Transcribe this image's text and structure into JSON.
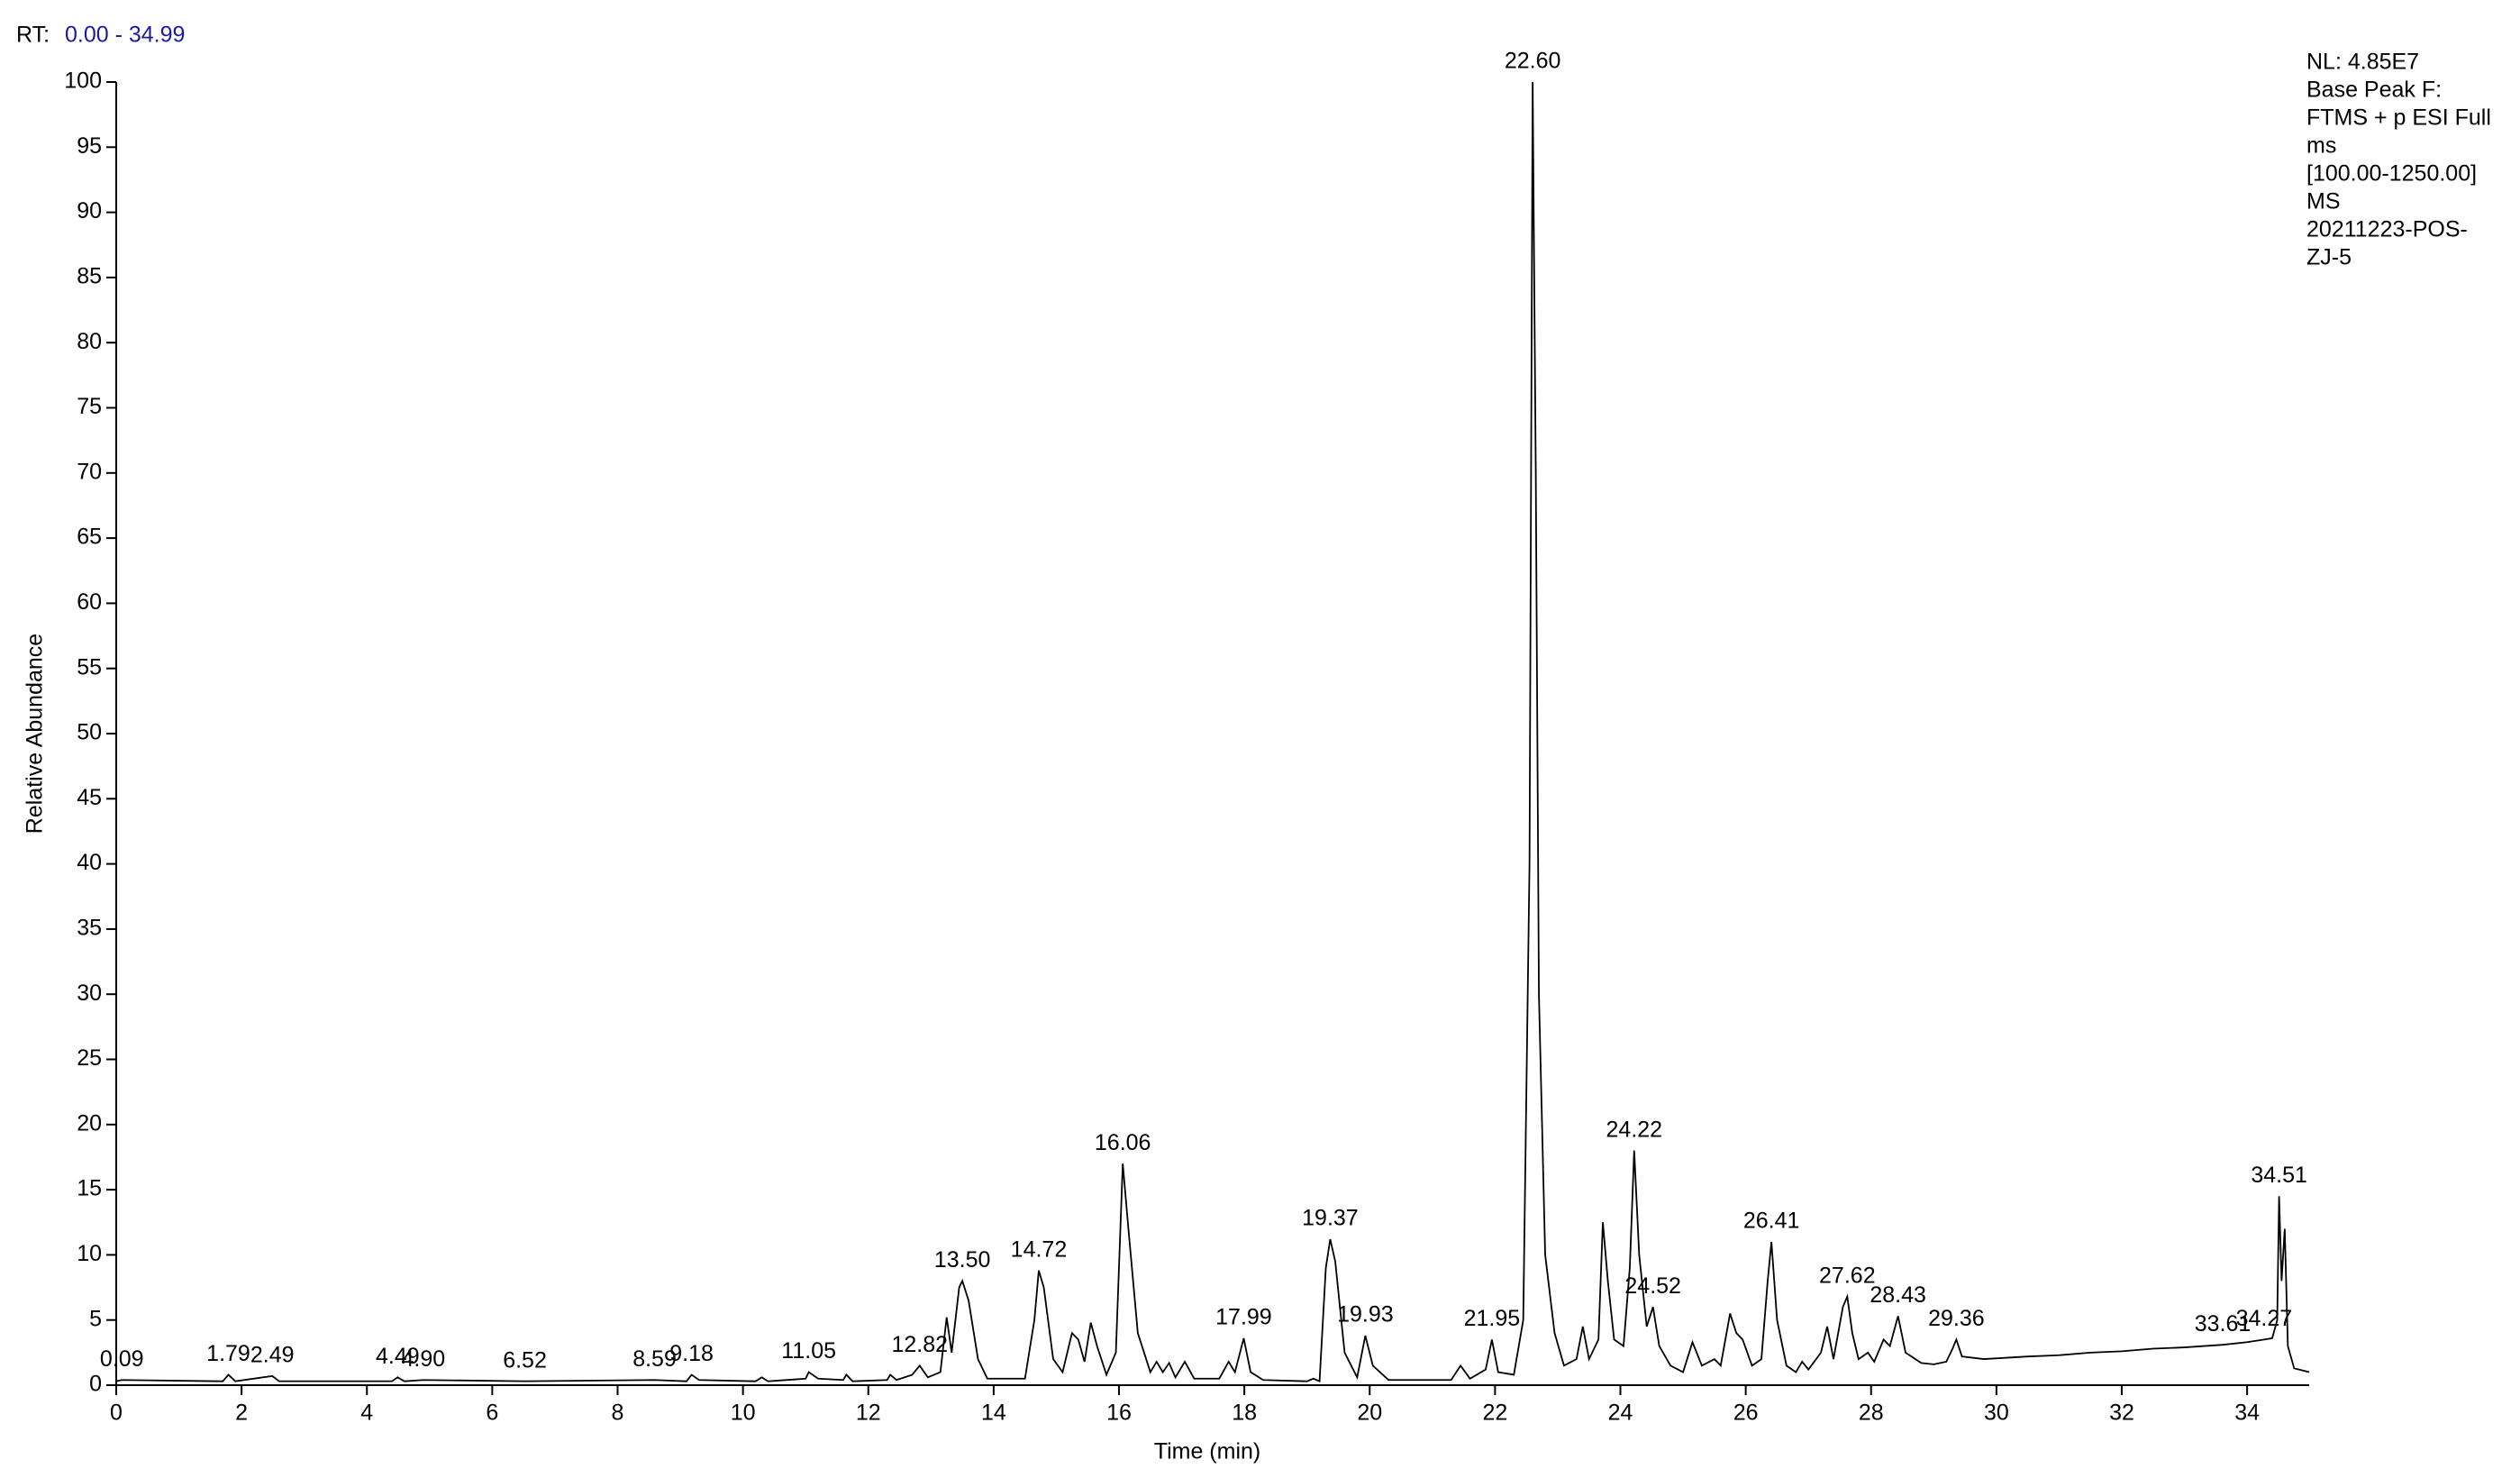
{
  "chart_data": {
    "type": "line",
    "range_label": "RT:",
    "range": "0.00 - 34.99",
    "info_lines": [
      "NL: 4.85E7",
      "Base Peak F:",
      "FTMS + p ESI Full",
      "ms",
      "[100.00-1250.00]",
      "MS",
      "20211223-POS-",
      "ZJ-5"
    ],
    "x_label": "Time (min)",
    "y_label": "Relative Abundance",
    "color": "#000000",
    "xlim": [
      0,
      34.99
    ],
    "ylim": [
      0,
      100
    ],
    "xticks": [
      0,
      2,
      4,
      6,
      8,
      10,
      12,
      14,
      16,
      18,
      20,
      22,
      24,
      26,
      28,
      30,
      32,
      34
    ],
    "yticks": [
      0,
      5,
      10,
      15,
      20,
      25,
      30,
      35,
      40,
      45,
      50,
      55,
      60,
      65,
      70,
      75,
      80,
      85,
      90,
      95,
      100
    ],
    "x": [
      0,
      0.09,
      1.7,
      1.79,
      1.9,
      2.49,
      2.6,
      4.4,
      4.49,
      4.6,
      4.9,
      6.52,
      8.59,
      9.1,
      9.18,
      9.3,
      10.2,
      10.3,
      10.4,
      11.0,
      11.05,
      11.2,
      11.6,
      11.65,
      11.75,
      12.3,
      12.35,
      12.45,
      12.7,
      12.82,
      12.95,
      13.15,
      13.25,
      13.33,
      13.45,
      13.5,
      13.6,
      13.75,
      13.9,
      14.5,
      14.65,
      14.72,
      14.8,
      14.95,
      15.1,
      15.25,
      15.35,
      15.45,
      15.55,
      15.65,
      15.8,
      15.95,
      16.06,
      16.15,
      16.3,
      16.5,
      16.6,
      16.7,
      16.8,
      16.9,
      17.05,
      17.2,
      17.6,
      17.75,
      17.85,
      17.99,
      18.1,
      18.3,
      19.0,
      19.1,
      19.2,
      19.3,
      19.37,
      19.45,
      19.6,
      19.8,
      19.93,
      20.05,
      20.3,
      21.3,
      21.45,
      21.6,
      21.85,
      21.95,
      22.05,
      22.3,
      22.45,
      22.55,
      22.6,
      22.65,
      22.7,
      22.8,
      22.95,
      23.1,
      23.3,
      23.4,
      23.5,
      23.65,
      23.72,
      23.8,
      23.9,
      24.05,
      24.15,
      24.22,
      24.3,
      24.42,
      24.52,
      24.62,
      24.8,
      25.0,
      25.15,
      25.3,
      25.5,
      25.6,
      25.75,
      25.85,
      25.95,
      26.1,
      26.25,
      26.35,
      26.41,
      26.5,
      26.65,
      26.8,
      26.9,
      27.0,
      27.2,
      27.3,
      27.4,
      27.55,
      27.62,
      27.7,
      27.8,
      27.95,
      28.05,
      28.2,
      28.3,
      28.43,
      28.55,
      28.8,
      29.0,
      29.2,
      29.3,
      29.36,
      29.45,
      29.8,
      30.5,
      31.0,
      31.5,
      32.0,
      32.5,
      33.0,
      33.61,
      34.0,
      34.27,
      34.4,
      34.48,
      34.51,
      34.55,
      34.6,
      34.65,
      34.75,
      34.99
    ],
    "values": [
      0.3,
      0.4,
      0.3,
      0.8,
      0.3,
      0.7,
      0.3,
      0.3,
      0.6,
      0.3,
      0.4,
      0.3,
      0.4,
      0.3,
      0.8,
      0.4,
      0.3,
      0.6,
      0.3,
      0.5,
      1.0,
      0.5,
      0.4,
      0.8,
      0.3,
      0.4,
      0.8,
      0.4,
      0.8,
      1.5,
      0.6,
      1.0,
      5.2,
      2.5,
      7.5,
      8.0,
      6.5,
      2.0,
      0.5,
      0.5,
      5,
      8.8,
      7.5,
      2.0,
      1.0,
      4.0,
      3.5,
      1.8,
      4.8,
      3.0,
      0.8,
      2.5,
      17.0,
      12,
      4.0,
      1.0,
      1.8,
      1.0,
      1.7,
      0.6,
      1.8,
      0.5,
      0.5,
      1.8,
      1.0,
      3.6,
      1.0,
      0.4,
      0.3,
      0.5,
      0.3,
      9,
      11.2,
      9.5,
      2.5,
      0.6,
      3.8,
      1.5,
      0.4,
      0.4,
      1.5,
      0.5,
      1.2,
      3.5,
      1.0,
      0.8,
      5,
      40,
      100,
      70,
      30,
      10,
      4,
      1.5,
      2.0,
      4.5,
      2.0,
      3.5,
      12.5,
      8,
      3.5,
      3,
      9,
      18.0,
      10,
      4.5,
      6.0,
      3,
      1.5,
      1.0,
      3.3,
      1.5,
      2,
      1.5,
      5.5,
      4.0,
      3.5,
      1.5,
      2.0,
      8,
      11.0,
      5,
      1.5,
      1.0,
      1.8,
      1.2,
      2.5,
      4.5,
      2.0,
      6,
      6.8,
      4,
      2.0,
      2.5,
      1.8,
      3.5,
      3.0,
      5.3,
      2.5,
      1.7,
      1.6,
      1.8,
      2.8,
      3.5,
      2.2,
      2.0,
      2.2,
      2.3,
      2.5,
      2.6,
      2.8,
      2.9,
      3.1,
      3.3,
      3.5,
      3.6,
      5,
      14.5,
      8,
      12,
      3,
      1.3,
      1.0
    ],
    "annotations": [
      {
        "text": "0.09",
        "x": 0.09,
        "y": 0.4
      },
      {
        "text": "1.79",
        "x": 1.79,
        "y": 0.8
      },
      {
        "text": "2.49",
        "x": 2.49,
        "y": 0.7
      },
      {
        "text": "4.49",
        "x": 4.49,
        "y": 0.6
      },
      {
        "text": "4.90",
        "x": 4.9,
        "y": 0.4
      },
      {
        "text": "6.52",
        "x": 6.52,
        "y": 0.3
      },
      {
        "text": "8.59",
        "x": 8.59,
        "y": 0.4
      },
      {
        "text": "9.18",
        "x": 9.18,
        "y": 0.8
      },
      {
        "text": "11.05",
        "x": 11.05,
        "y": 1.0
      },
      {
        "text": "12.82",
        "x": 12.82,
        "y": 1.5
      },
      {
        "text": "13.50",
        "x": 13.5,
        "y": 8.0
      },
      {
        "text": "14.72",
        "x": 14.72,
        "y": 8.8
      },
      {
        "text": "16.06",
        "x": 16.06,
        "y": 17.0
      },
      {
        "text": "17.99",
        "x": 17.99,
        "y": 3.6
      },
      {
        "text": "19.37",
        "x": 19.37,
        "y": 11.2
      },
      {
        "text": "19.93",
        "x": 19.93,
        "y": 3.8
      },
      {
        "text": "21.95",
        "x": 21.95,
        "y": 3.5
      },
      {
        "text": "22.60",
        "x": 22.6,
        "y": 100
      },
      {
        "text": "24.22",
        "x": 24.22,
        "y": 18.0
      },
      {
        "text": "24.52",
        "x": 24.52,
        "y": 6.0
      },
      {
        "text": "26.41",
        "x": 26.41,
        "y": 11.0
      },
      {
        "text": "27.62",
        "x": 27.62,
        "y": 6.8
      },
      {
        "text": "28.43",
        "x": 28.43,
        "y": 5.3
      },
      {
        "text": "29.36",
        "x": 29.36,
        "y": 3.5
      },
      {
        "text": "33.61",
        "x": 33.61,
        "y": 3.1
      },
      {
        "text": "34.27",
        "x": 34.27,
        "y": 3.5
      },
      {
        "text": "34.51",
        "x": 34.51,
        "y": 14.5
      }
    ]
  }
}
